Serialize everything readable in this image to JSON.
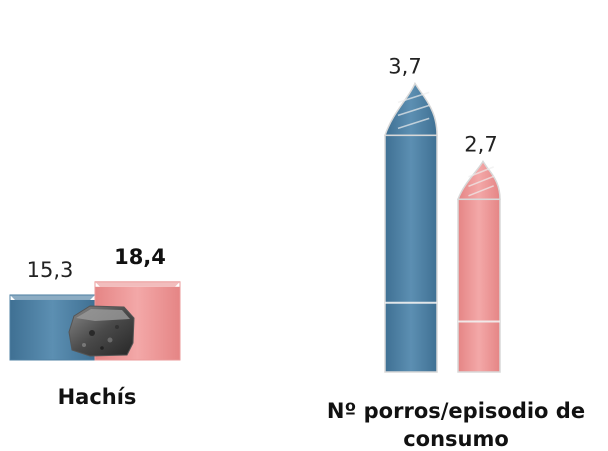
{
  "chart_data": [
    {
      "type": "bar",
      "categories": [
        "Hachís"
      ],
      "series": [
        {
          "values": [
            15.3
          ],
          "value_labels": [
            "15,3"
          ],
          "color": "#4f80a3",
          "label_bold": false
        },
        {
          "values": [
            18.4
          ],
          "value_labels": [
            "18,4"
          ],
          "color": "#eb9a9a",
          "label_bold": true
        }
      ],
      "title": "",
      "xlabel": "",
      "ylabel": "",
      "decoration": "hashish-block-photo"
    },
    {
      "type": "bar",
      "categories": [
        "Nº porros/episodio de consumo"
      ],
      "series": [
        {
          "values": [
            3.7
          ],
          "value_labels": [
            "3,7"
          ],
          "color": "#5a87a2"
        },
        {
          "values": [
            2.7
          ],
          "value_labels": [
            "2,7"
          ],
          "color": "#e19a9f"
        }
      ],
      "title": "",
      "xlabel": "",
      "ylabel": "",
      "bar_style": "joint-shaped"
    }
  ],
  "labels": {
    "hachis": "Hachís",
    "porros_line1": "Nº porros/episodio de",
    "porros_line2": "consumo"
  }
}
